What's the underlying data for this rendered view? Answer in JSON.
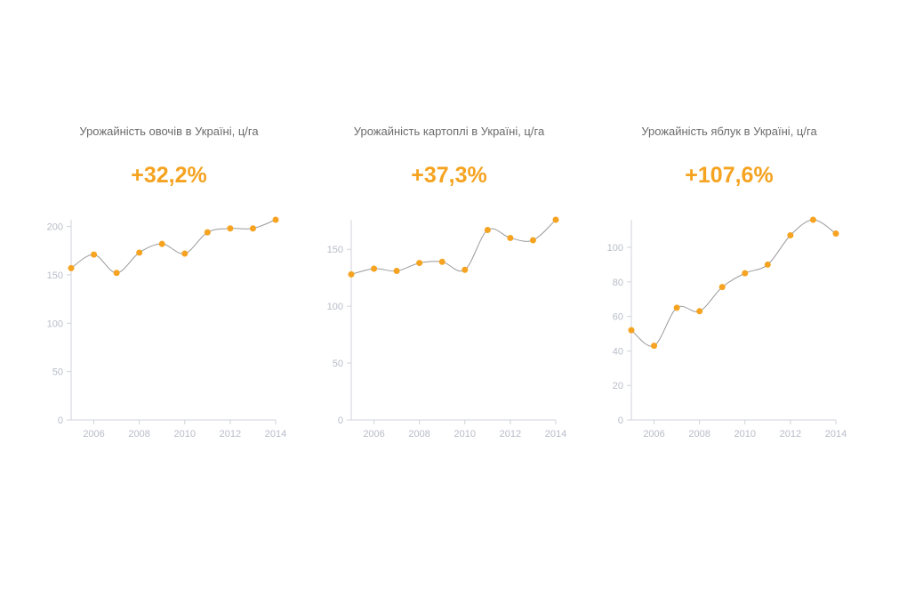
{
  "colors": {
    "accent": "#f5a320",
    "line": "#9a9a9a",
    "axis": "#d0d3db",
    "tick": "#b8bcc8",
    "title": "#6b6b6b"
  },
  "chart_data": [
    {
      "type": "line",
      "title": "Урожайність овочів в Україні, ц/га",
      "change": "+32,2%",
      "x": [
        2005,
        2006,
        2007,
        2008,
        2009,
        2010,
        2011,
        2012,
        2013,
        2014
      ],
      "values": [
        157,
        171,
        152,
        173,
        182,
        172,
        194,
        198,
        198,
        207
      ],
      "xlim": [
        2005,
        2014
      ],
      "ylim": [
        0,
        207
      ],
      "xticks": [
        2006,
        2008,
        2010,
        2012,
        2014
      ],
      "yticks": [
        0,
        50,
        100,
        150,
        200
      ],
      "grid": false
    },
    {
      "type": "line",
      "title": "Урожайність картоплі в Україні, ц/га",
      "change": "+37,3%",
      "x": [
        2005,
        2006,
        2007,
        2008,
        2009,
        2010,
        2011,
        2012,
        2013,
        2014
      ],
      "values": [
        128,
        133,
        131,
        138,
        139,
        132,
        167,
        160,
        158,
        176
      ],
      "xlim": [
        2005,
        2014
      ],
      "ylim": [
        0,
        176
      ],
      "xticks": [
        2006,
        2008,
        2010,
        2012,
        2014
      ],
      "yticks": [
        0,
        50,
        100,
        150
      ],
      "grid": false
    },
    {
      "type": "line",
      "title": "Урожайність яблук в Україні, ц/га",
      "change": "+107,6%",
      "x": [
        2005,
        2006,
        2007,
        2008,
        2009,
        2010,
        2011,
        2012,
        2013,
        2014
      ],
      "values": [
        52,
        43,
        65,
        63,
        77,
        85,
        90,
        107,
        116,
        108
      ],
      "xlim": [
        2005,
        2014
      ],
      "ylim": [
        0,
        116
      ],
      "xticks": [
        2006,
        2008,
        2010,
        2012,
        2014
      ],
      "yticks": [
        0,
        20,
        40,
        60,
        80,
        100
      ],
      "grid": false
    }
  ]
}
